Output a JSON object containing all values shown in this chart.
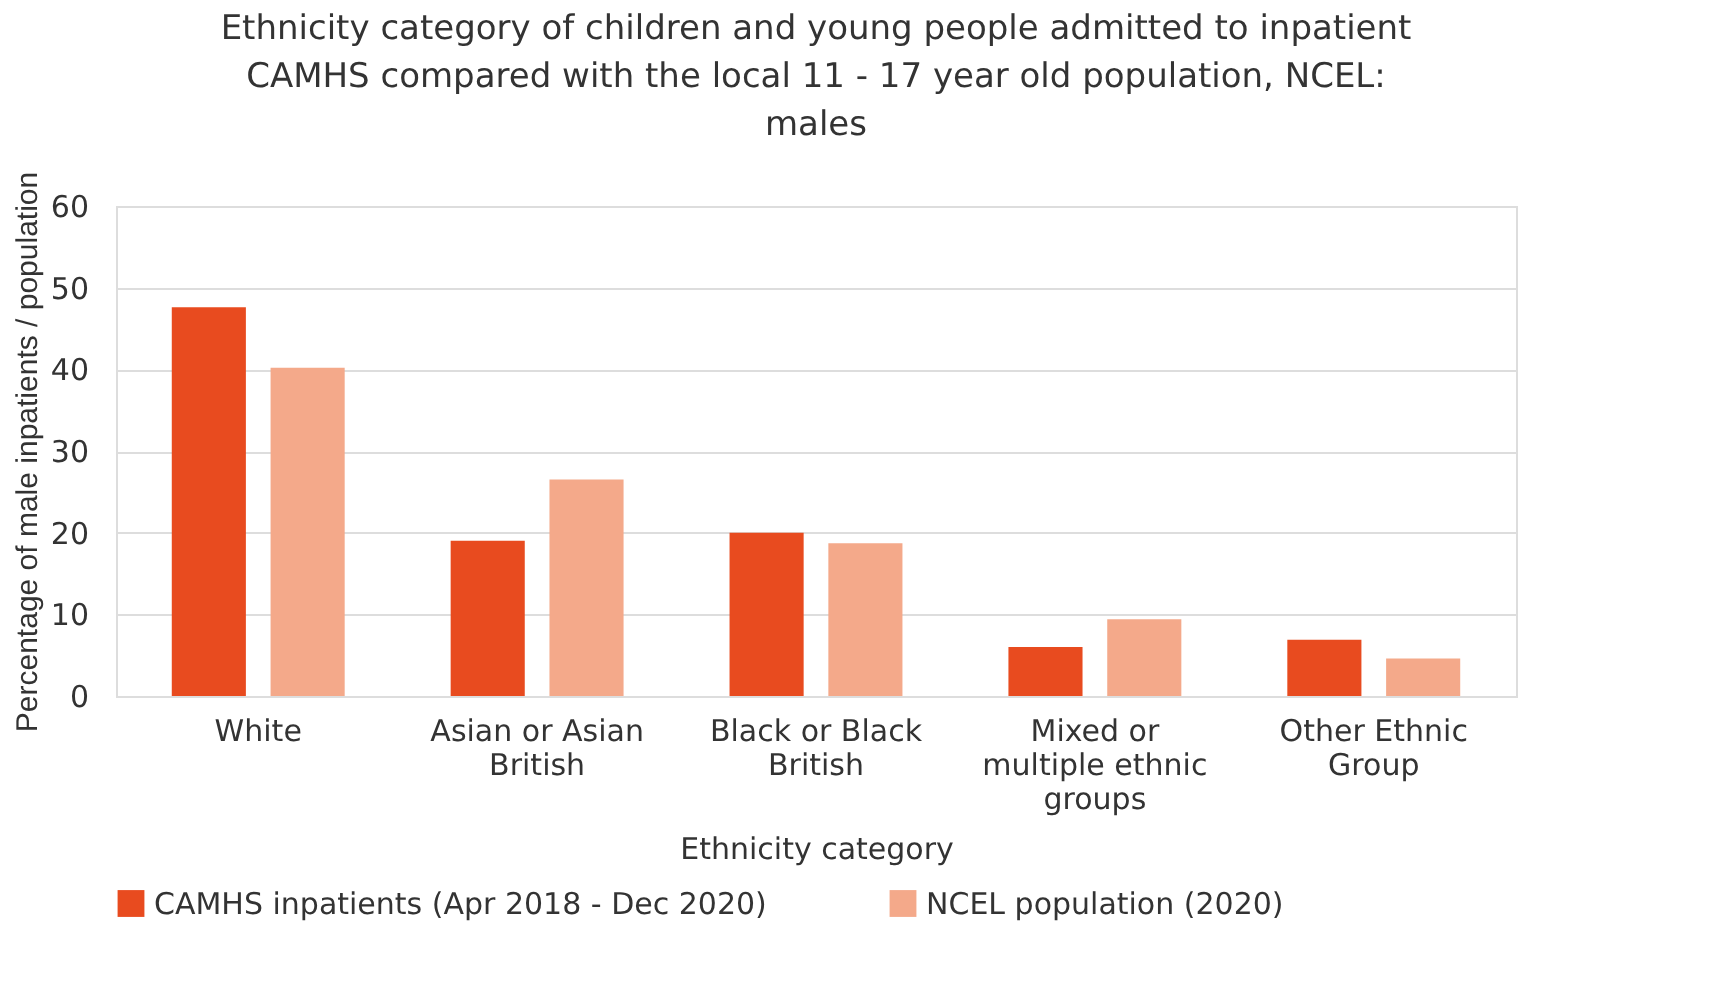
{
  "chart_data": {
    "type": "bar",
    "title": "Ethnicity category of children and young people admitted to inpatient CAMHS compared with the local 11 - 17 year old population,  NCEL: males",
    "xlabel": "Ethnicity category",
    "ylabel": "Percentage of male inpatients / population",
    "categories": [
      "White",
      "Asian or Asian British",
      "Black or Black British",
      "Mixed or multiple ethnic groups",
      "Other Ethnic Group"
    ],
    "series": [
      {
        "name": "CAMHS inpatients (Apr 2018 - Dec 2020)",
        "color": "#e84b1f",
        "values": [
          47.6,
          19.0,
          20.0,
          6.0,
          6.9
        ]
      },
      {
        "name": "NCEL population (2020)",
        "color": "#f4a98a",
        "values": [
          40.2,
          26.5,
          18.7,
          9.4,
          4.6
        ]
      }
    ],
    "ylim": [
      0,
      60
    ],
    "yticks": [
      0,
      10,
      20,
      30,
      40,
      50,
      60
    ],
    "grid": "y",
    "legend": "bottom"
  }
}
